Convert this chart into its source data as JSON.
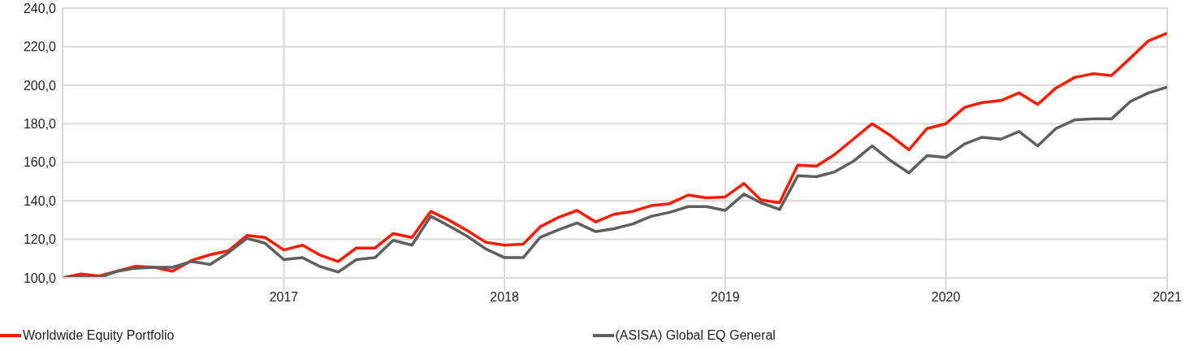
{
  "chart_data": {
    "type": "line",
    "x": [
      "2016-01",
      "2016-02",
      "2016-03",
      "2016-04",
      "2016-05",
      "2016-06",
      "2016-07",
      "2016-08",
      "2016-09",
      "2016-10",
      "2016-11",
      "2016-12",
      "2017-01",
      "2017-02",
      "2017-03",
      "2017-04",
      "2017-05",
      "2017-06",
      "2017-07",
      "2017-08",
      "2017-09",
      "2017-10",
      "2017-11",
      "2017-12",
      "2018-01",
      "2018-02",
      "2018-03",
      "2018-04",
      "2018-05",
      "2018-06",
      "2018-07",
      "2018-08",
      "2018-09",
      "2018-10",
      "2018-11",
      "2018-12",
      "2019-01",
      "2019-02",
      "2019-03",
      "2019-04",
      "2019-05",
      "2019-06",
      "2019-07",
      "2019-08",
      "2019-09",
      "2019-10",
      "2019-11",
      "2019-12",
      "2020-01",
      "2020-02",
      "2020-03",
      "2020-04",
      "2020-05",
      "2020-06",
      "2020-07",
      "2020-08",
      "2020-09",
      "2020-10",
      "2020-11",
      "2020-12",
      "2021-01"
    ],
    "series": [
      {
        "name": "Worldwide Equity Portfolio",
        "color": "#ff1a00",
        "values": [
          100,
          102,
          101,
          103.5,
          106,
          105.5,
          103.5,
          109,
          112,
          114,
          122,
          121,
          114.5,
          117,
          112,
          108.5,
          115.5,
          115.5,
          123,
          121,
          134.5,
          130,
          124.5,
          118.5,
          117,
          117.5,
          126.5,
          131.5,
          135,
          129,
          133,
          134.5,
          137.5,
          138.5,
          143,
          141.5,
          142,
          149,
          140.5,
          139,
          158.5,
          158,
          164,
          172,
          180,
          174,
          166.5,
          177.5,
          180,
          188.5,
          191,
          192,
          196,
          190,
          198.5,
          204,
          206,
          205,
          214,
          223,
          227
        ]
      },
      {
        "name": "(ASISA) Global EQ General",
        "color": "#5f5f5f",
        "values": [
          100,
          100.5,
          100,
          103.5,
          105,
          105.5,
          105.5,
          108.5,
          107,
          113,
          120.5,
          118,
          109.5,
          110.5,
          106,
          103,
          109.5,
          110.5,
          119.5,
          117,
          132,
          127,
          121.5,
          115,
          110.5,
          110.5,
          121,
          125,
          128.5,
          124,
          125.5,
          128,
          132,
          134,
          137,
          137,
          135,
          143.5,
          139,
          135.5,
          153,
          152.5,
          155,
          160.5,
          168.5,
          161,
          154.5,
          163.5,
          162.5,
          169.5,
          173,
          172,
          176,
          168.5,
          177.5,
          182,
          182.5,
          182.5,
          191.5,
          196,
          199
        ]
      }
    ],
    "xlim": [
      "2016-01",
      "2021-01"
    ],
    "xticks": [
      {
        "value": "2017-01",
        "label": "2017"
      },
      {
        "value": "2018-01",
        "label": "2018"
      },
      {
        "value": "2019-01",
        "label": "2019"
      },
      {
        "value": "2020-01",
        "label": "2020"
      },
      {
        "value": "2021-01",
        "label": "2021"
      }
    ],
    "ylim": [
      100,
      240
    ],
    "yticks": [
      {
        "value": 100,
        "label": "100,0"
      },
      {
        "value": 120,
        "label": "120,0"
      },
      {
        "value": 140,
        "label": "140,0"
      },
      {
        "value": 160,
        "label": "160,0"
      },
      {
        "value": 180,
        "label": "180,0"
      },
      {
        "value": 200,
        "label": "200,0"
      },
      {
        "value": 220,
        "label": "220,0"
      },
      {
        "value": 240,
        "label": "240,0"
      }
    ],
    "grid": true,
    "legend": "bottom",
    "marker": "none",
    "line_style": "solid"
  }
}
